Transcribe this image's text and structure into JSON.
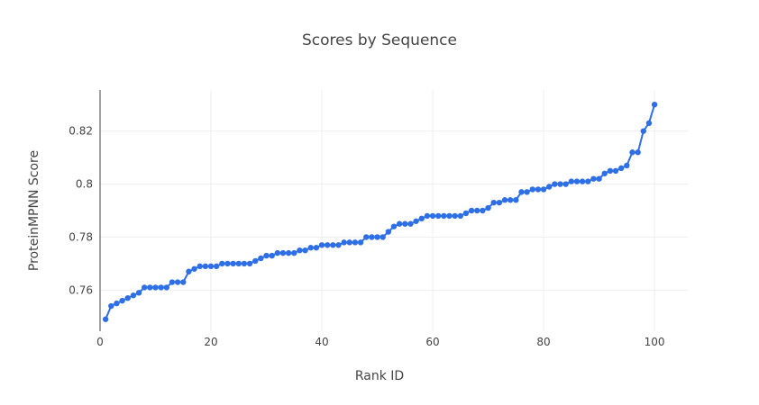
{
  "chart_data": {
    "type": "line",
    "title": "Scores by Sequence",
    "xlabel": "Rank ID",
    "ylabel": "ProteinMPNN Score",
    "xlim": [
      0,
      106
    ],
    "ylim": [
      0.7445,
      0.8355
    ],
    "x_ticks": [
      0,
      20,
      40,
      60,
      80,
      100
    ],
    "y_ticks": [
      0.76,
      0.78,
      0.8,
      0.82
    ],
    "x_tick_labels": [
      "0",
      "20",
      "40",
      "60",
      "80",
      "100"
    ],
    "y_tick_labels": [
      "0.76",
      "0.78",
      "0.8",
      "0.82"
    ],
    "grid": true,
    "legend": "none",
    "series": [
      {
        "color": "#2f6fe6",
        "x": [
          1,
          2,
          3,
          4,
          5,
          6,
          7,
          8,
          9,
          10,
          11,
          12,
          13,
          14,
          15,
          16,
          17,
          18,
          19,
          20,
          21,
          22,
          23,
          24,
          25,
          26,
          27,
          28,
          29,
          30,
          31,
          32,
          33,
          34,
          35,
          36,
          37,
          38,
          39,
          40,
          41,
          42,
          43,
          44,
          45,
          46,
          47,
          48,
          49,
          50,
          51,
          52,
          53,
          54,
          55,
          56,
          57,
          58,
          59,
          60,
          61,
          62,
          63,
          64,
          65,
          66,
          67,
          68,
          69,
          70,
          71,
          72,
          73,
          74,
          75,
          76,
          77,
          78,
          79,
          80,
          81,
          82,
          83,
          84,
          85,
          86,
          87,
          88,
          89,
          90,
          91,
          92,
          93,
          94,
          95,
          96,
          97,
          98,
          99,
          100
        ],
        "values": [
          0.749,
          0.754,
          0.755,
          0.756,
          0.757,
          0.758,
          0.759,
          0.761,
          0.761,
          0.761,
          0.761,
          0.761,
          0.763,
          0.763,
          0.763,
          0.767,
          0.768,
          0.769,
          0.769,
          0.769,
          0.769,
          0.77,
          0.77,
          0.77,
          0.77,
          0.77,
          0.77,
          0.771,
          0.772,
          0.773,
          0.773,
          0.774,
          0.774,
          0.774,
          0.774,
          0.775,
          0.775,
          0.776,
          0.776,
          0.777,
          0.777,
          0.777,
          0.777,
          0.778,
          0.778,
          0.778,
          0.778,
          0.78,
          0.78,
          0.78,
          0.78,
          0.782,
          0.784,
          0.785,
          0.785,
          0.785,
          0.786,
          0.787,
          0.788,
          0.788,
          0.788,
          0.788,
          0.788,
          0.788,
          0.788,
          0.789,
          0.79,
          0.79,
          0.79,
          0.791,
          0.793,
          0.793,
          0.794,
          0.794,
          0.794,
          0.797,
          0.797,
          0.798,
          0.798,
          0.798,
          0.799,
          0.8,
          0.8,
          0.8,
          0.801,
          0.801,
          0.801,
          0.801,
          0.802,
          0.802,
          0.804,
          0.805,
          0.805,
          0.806,
          0.807,
          0.812,
          0.812,
          0.82,
          0.823,
          0.83
        ]
      }
    ]
  }
}
